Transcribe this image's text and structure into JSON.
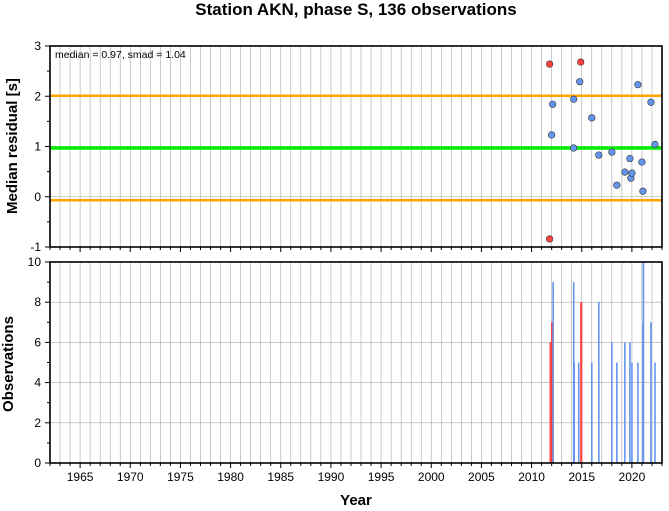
{
  "chart_data": [
    {
      "type": "scatter",
      "title": "Station AKN, phase S, 136 observations",
      "xlabel": "",
      "ylabel": "Median residual [s]",
      "annotation": "median = 0.97, smad = 1.04",
      "xlim": [
        1962,
        2023
      ],
      "ylim": [
        -1,
        3
      ],
      "yticks": [
        "-1",
        "0",
        "1",
        "2",
        "3"
      ],
      "grid": true,
      "colors": {
        "median": "#00ee00",
        "bounds": "#ffa500",
        "normal": "#6495ed",
        "outlier": "#ff4040"
      },
      "reference_lines": [
        {
          "role": "median",
          "y": 0.97
        },
        {
          "role": "lower",
          "y": -0.07
        },
        {
          "role": "upper",
          "y": 2.01
        }
      ],
      "series": [
        {
          "role": "normal",
          "points": [
            {
              "x": 2012.1,
              "y": 1.84
            },
            {
              "x": 2012.0,
              "y": 1.23
            },
            {
              "x": 2014.2,
              "y": 1.94
            },
            {
              "x": 2014.2,
              "y": 0.97
            },
            {
              "x": 2014.8,
              "y": 2.29
            },
            {
              "x": 2016.0,
              "y": 1.57
            },
            {
              "x": 2016.7,
              "y": 0.83
            },
            {
              "x": 2018.0,
              "y": 0.89
            },
            {
              "x": 2018.5,
              "y": 0.23
            },
            {
              "x": 2019.3,
              "y": 0.49
            },
            {
              "x": 2019.8,
              "y": 0.76
            },
            {
              "x": 2019.9,
              "y": 0.37
            },
            {
              "x": 2020.0,
              "y": 0.47
            },
            {
              "x": 2020.6,
              "y": 2.23
            },
            {
              "x": 2021.0,
              "y": 0.69
            },
            {
              "x": 2021.1,
              "y": 0.11
            },
            {
              "x": 2021.9,
              "y": 1.88
            },
            {
              "x": 2022.3,
              "y": 1.04
            }
          ]
        },
        {
          "role": "outlier",
          "points": [
            {
              "x": 2011.8,
              "y": 2.64
            },
            {
              "x": 2011.8,
              "y": -0.84
            },
            {
              "x": 2014.9,
              "y": 2.68
            }
          ]
        }
      ]
    },
    {
      "type": "bar",
      "xlabel": "Year",
      "ylabel": "Observations",
      "xlim": [
        1962,
        2023
      ],
      "ylim": [
        0,
        10
      ],
      "yticks": [
        "0",
        "2",
        "4",
        "6",
        "8",
        "10"
      ],
      "xticks": [
        "1965",
        "1970",
        "1975",
        "1980",
        "1985",
        "1990",
        "1995",
        "2000",
        "2005",
        "2010",
        "2015",
        "2020"
      ],
      "grid": true,
      "bars": [
        {
          "x": 2011.9,
          "value": 6,
          "outlier": true
        },
        {
          "x": 2012.05,
          "value": 7,
          "outlier": true
        },
        {
          "x": 2012.15,
          "value": 9,
          "outlier": false
        },
        {
          "x": 2014.2,
          "value": 9,
          "outlier": false
        },
        {
          "x": 2014.25,
          "value": 5,
          "outlier": false
        },
        {
          "x": 2014.7,
          "value": 5,
          "outlier": false
        },
        {
          "x": 2014.95,
          "value": 8,
          "outlier": true
        },
        {
          "x": 2016.0,
          "value": 5,
          "outlier": false
        },
        {
          "x": 2016.7,
          "value": 8,
          "outlier": false
        },
        {
          "x": 2018.0,
          "value": 6,
          "outlier": false
        },
        {
          "x": 2018.5,
          "value": 5,
          "outlier": false
        },
        {
          "x": 2019.3,
          "value": 6,
          "outlier": false
        },
        {
          "x": 2019.8,
          "value": 6,
          "outlier": false
        },
        {
          "x": 2020.0,
          "value": 5,
          "outlier": false
        },
        {
          "x": 2020.6,
          "value": 5,
          "outlier": false
        },
        {
          "x": 2021.1,
          "value": 7,
          "outlier": false
        },
        {
          "x": 2021.15,
          "value": 10,
          "outlier": false
        },
        {
          "x": 2021.9,
          "value": 7,
          "outlier": false
        },
        {
          "x": 2022.3,
          "value": 5,
          "outlier": false
        }
      ]
    }
  ]
}
